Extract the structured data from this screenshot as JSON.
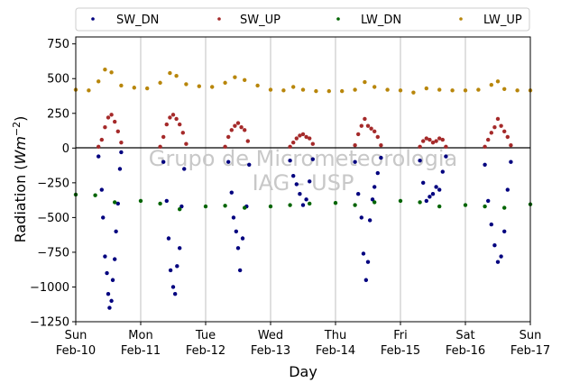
{
  "chart_data": {
    "type": "scatter",
    "xlabel": "Day",
    "ylabel_main": "Radiation (",
    "ylabel_unit": "Wm",
    "ylabel_exp": "−2",
    "ylabel_close": ")",
    "ylim": [
      -1250,
      800
    ],
    "xlim": [
      0,
      7
    ],
    "yticks": [
      750,
      500,
      250,
      0,
      -250,
      -500,
      -750,
      -1000,
      -1250
    ],
    "ytick_labels": [
      "750",
      "500",
      "250",
      "0",
      "−250",
      "−500",
      "−750",
      "−1000",
      "−1250"
    ],
    "xtick_labels": [
      [
        "Sun",
        "Feb-10"
      ],
      [
        "Mon",
        "Feb-11"
      ],
      [
        "Tue",
        "Feb-12"
      ],
      [
        "Wed",
        "Feb-13"
      ],
      [
        "Thu",
        "Feb-14"
      ],
      [
        "Fri",
        "Feb-15"
      ],
      [
        "Sat",
        "Feb-16"
      ],
      [
        "Sun",
        "Feb-17"
      ]
    ],
    "grid": "vertical-at-day-ticks",
    "zero_line": true,
    "legend_position": "top, above plot, 4 columns",
    "watermark": [
      "Grupo de Micrometeorologia",
      "IAG - USP"
    ],
    "series": [
      {
        "name": "SW_DN",
        "color": "#00007f",
        "x": [
          0.35,
          0.4,
          0.42,
          0.45,
          0.48,
          0.5,
          0.52,
          0.55,
          0.57,
          0.6,
          0.62,
          0.65,
          0.68,
          0.7,
          1.35,
          1.4,
          1.43,
          1.46,
          1.5,
          1.53,
          1.56,
          1.6,
          1.63,
          1.67,
          2.35,
          2.4,
          2.43,
          2.47,
          2.5,
          2.53,
          2.57,
          2.63,
          2.67,
          3.3,
          3.35,
          3.4,
          3.45,
          3.5,
          3.55,
          3.6,
          3.65,
          4.3,
          4.35,
          4.4,
          4.43,
          4.47,
          4.5,
          4.53,
          4.57,
          4.6,
          4.65,
          4.7,
          5.3,
          5.35,
          5.4,
          5.45,
          5.5,
          5.55,
          5.6,
          5.65,
          5.7,
          6.3,
          6.35,
          6.4,
          6.45,
          6.5,
          6.55,
          6.6,
          6.65,
          6.7
        ],
        "y": [
          -60,
          -300,
          -500,
          -780,
          -900,
          -1050,
          -1150,
          -1100,
          -950,
          -800,
          -600,
          -400,
          -150,
          -30,
          -100,
          -380,
          -650,
          -880,
          -1000,
          -1050,
          -850,
          -720,
          -420,
          -150,
          -100,
          -320,
          -500,
          -600,
          -720,
          -880,
          -650,
          -420,
          -120,
          -90,
          -200,
          -260,
          -330,
          -410,
          -370,
          -240,
          -80,
          -100,
          -330,
          -500,
          -760,
          -950,
          -820,
          -520,
          -370,
          -280,
          -180,
          -70,
          -90,
          -250,
          -380,
          -350,
          -330,
          -280,
          -300,
          -170,
          -60,
          -120,
          -380,
          -550,
          -700,
          -820,
          -780,
          -600,
          -300,
          -100
        ]
      },
      {
        "name": "SW_UP",
        "color": "#a52a2a",
        "x": [
          0.35,
          0.4,
          0.45,
          0.5,
          0.55,
          0.6,
          0.65,
          0.7,
          1.3,
          1.35,
          1.4,
          1.45,
          1.5,
          1.55,
          1.6,
          1.65,
          1.7,
          2.3,
          2.35,
          2.4,
          2.45,
          2.5,
          2.55,
          2.6,
          2.65,
          3.3,
          3.35,
          3.4,
          3.45,
          3.5,
          3.55,
          3.6,
          3.65,
          4.3,
          4.35,
          4.4,
          4.45,
          4.5,
          4.55,
          4.6,
          4.65,
          4.7,
          5.3,
          5.35,
          5.4,
          5.45,
          5.5,
          5.55,
          5.6,
          5.65,
          5.7,
          6.3,
          6.35,
          6.4,
          6.45,
          6.5,
          6.55,
          6.6,
          6.65,
          6.7
        ],
        "y": [
          10,
          60,
          150,
          220,
          240,
          190,
          120,
          40,
          10,
          80,
          170,
          220,
          240,
          210,
          170,
          110,
          30,
          10,
          80,
          130,
          160,
          180,
          150,
          130,
          50,
          10,
          40,
          70,
          90,
          100,
          80,
          70,
          30,
          20,
          100,
          160,
          210,
          160,
          140,
          120,
          80,
          20,
          10,
          50,
          70,
          60,
          40,
          50,
          70,
          60,
          10,
          10,
          60,
          110,
          150,
          210,
          160,
          120,
          80,
          20
        ]
      },
      {
        "name": "LW_DN",
        "color": "#006400",
        "x": [
          0.0,
          0.3,
          0.6,
          1.0,
          1.3,
          1.6,
          2.0,
          2.3,
          2.6,
          3.0,
          3.3,
          3.6,
          4.0,
          4.3,
          4.6,
          5.0,
          5.3,
          5.6,
          6.0,
          6.3,
          6.6,
          7.0
        ],
        "y": [
          -335,
          -340,
          -390,
          -380,
          -400,
          -440,
          -420,
          -415,
          -430,
          -420,
          -410,
          -400,
          -395,
          -410,
          -390,
          -380,
          -390,
          -420,
          -410,
          -420,
          -430,
          -405
        ]
      },
      {
        "name": "LW_UP",
        "color": "#b8860b",
        "x": [
          0.0,
          0.2,
          0.35,
          0.45,
          0.55,
          0.7,
          0.9,
          1.1,
          1.3,
          1.45,
          1.55,
          1.7,
          1.9,
          2.1,
          2.3,
          2.45,
          2.6,
          2.8,
          3.0,
          3.2,
          3.35,
          3.5,
          3.7,
          3.9,
          4.1,
          4.3,
          4.45,
          4.6,
          4.8,
          5.0,
          5.2,
          5.4,
          5.6,
          5.8,
          6.0,
          6.2,
          6.4,
          6.5,
          6.6,
          6.8,
          7.0
        ],
        "y": [
          420,
          415,
          480,
          565,
          545,
          450,
          435,
          430,
          470,
          540,
          520,
          460,
          445,
          440,
          470,
          510,
          490,
          450,
          420,
          415,
          440,
          420,
          410,
          410,
          410,
          420,
          475,
          440,
          420,
          415,
          400,
          430,
          420,
          415,
          415,
          420,
          455,
          480,
          425,
          415,
          415
        ]
      }
    ]
  }
}
